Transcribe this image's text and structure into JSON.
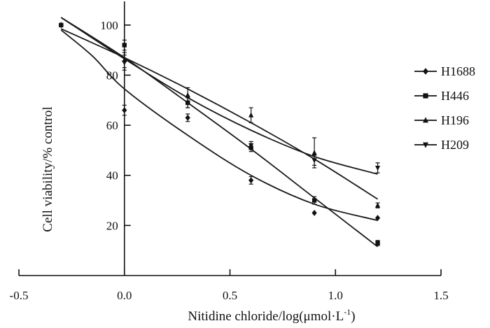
{
  "chart_data": {
    "type": "scatter",
    "title": "",
    "xlabel_main": "Nitidine chloride/log(μmol·L",
    "xlabel_sup": "-1",
    "xlabel_close": ")",
    "ylabel": "Cell viability/% control",
    "xlim": [
      -0.5,
      1.5
    ],
    "ylim": [
      0,
      110
    ],
    "xticks": [
      -0.5,
      0.0,
      0.5,
      1.0,
      1.5
    ],
    "xtick_labels": [
      "-0.5",
      "0.0",
      "0.5",
      "1.0",
      "1.5"
    ],
    "yticks": [
      20,
      40,
      60,
      80,
      100
    ],
    "ytick_labels": [
      "20",
      "40",
      "60",
      "80",
      "100"
    ],
    "grid": false,
    "legend_position": "right",
    "series": [
      {
        "name": "H1688",
        "marker": "diamond",
        "points": [
          {
            "x": -0.3,
            "y": 100,
            "err": 0
          },
          {
            "x": 0.0,
            "y": 66,
            "err": 2
          },
          {
            "x": 0.3,
            "y": 63,
            "err": 1.5
          },
          {
            "x": 0.6,
            "y": 38,
            "err": 1.5
          },
          {
            "x": 0.9,
            "y": 25,
            "err": 0
          },
          {
            "x": 1.2,
            "y": 23,
            "err": 0
          }
        ],
        "fit": [
          [
            -0.3,
            98
          ],
          [
            -0.15,
            87.5
          ],
          [
            0.0,
            74.5
          ],
          [
            0.3,
            56
          ],
          [
            0.6,
            40
          ],
          [
            0.9,
            28.5
          ],
          [
            1.2,
            22
          ]
        ]
      },
      {
        "name": "H446",
        "marker": "square",
        "points": [
          {
            "x": -0.3,
            "y": 100,
            "err": 0
          },
          {
            "x": 0.0,
            "y": 92,
            "err": 2
          },
          {
            "x": 0.3,
            "y": 69,
            "err": 2
          },
          {
            "x": 0.6,
            "y": 51,
            "err": 1.5
          },
          {
            "x": 0.9,
            "y": 30,
            "err": 1.5
          },
          {
            "x": 1.2,
            "y": 13,
            "err": 1
          }
        ],
        "fit": [
          [
            -0.3,
            103
          ],
          [
            0.0,
            87
          ],
          [
            0.3,
            69
          ],
          [
            0.6,
            50.5
          ],
          [
            0.9,
            31
          ],
          [
            1.2,
            11.5
          ]
        ]
      },
      {
        "name": "H196",
        "marker": "triangle",
        "points": [
          {
            "x": 0.0,
            "y": 86,
            "err": 3
          },
          {
            "x": 0.3,
            "y": 72,
            "err": 3
          },
          {
            "x": 0.6,
            "y": 64,
            "err": 3
          },
          {
            "x": 0.9,
            "y": 49,
            "err": 6
          },
          {
            "x": 1.2,
            "y": 28,
            "err": 1
          }
        ],
        "fit": [
          [
            -0.3,
            98.5
          ],
          [
            0.0,
            87
          ],
          [
            0.3,
            74.5
          ],
          [
            0.6,
            61
          ],
          [
            0.9,
            46.5
          ],
          [
            1.2,
            30.5
          ]
        ]
      },
      {
        "name": "H209",
        "marker": "inverted-triangle",
        "points": [
          {
            "x": 0.0,
            "y": 85,
            "err": 3
          },
          {
            "x": 0.3,
            "y": 69,
            "err": 2
          },
          {
            "x": 0.6,
            "y": 52,
            "err": 1.5
          },
          {
            "x": 0.9,
            "y": 46,
            "err": 2
          },
          {
            "x": 1.2,
            "y": 43,
            "err": 2
          }
        ],
        "fit": [
          [
            -0.3,
            103
          ],
          [
            0.0,
            86.5
          ],
          [
            0.3,
            71
          ],
          [
            0.6,
            58
          ],
          [
            0.9,
            47.5
          ],
          [
            1.2,
            40.5
          ]
        ]
      }
    ]
  }
}
